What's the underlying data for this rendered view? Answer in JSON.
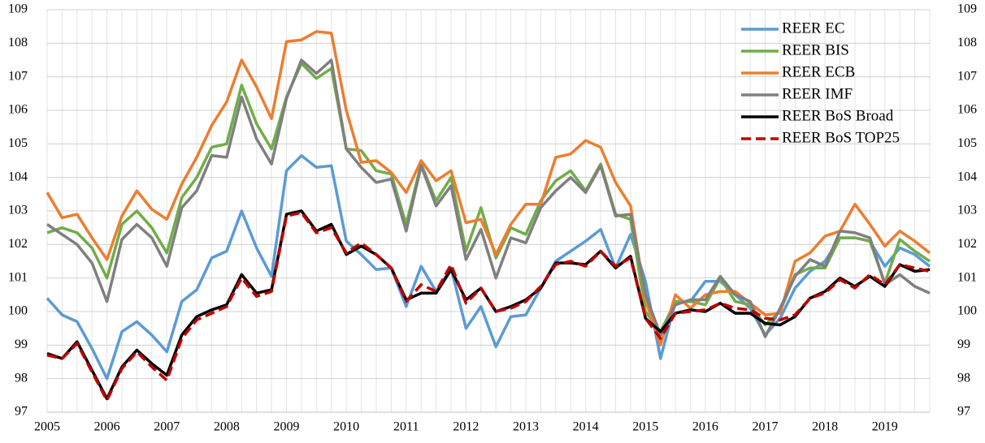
{
  "chart_data": {
    "type": "line",
    "categories": [
      "2005",
      null,
      null,
      null,
      "2006",
      null,
      null,
      null,
      "2007",
      null,
      null,
      null,
      "2008",
      null,
      null,
      null,
      "2009",
      null,
      null,
      null,
      "2010",
      null,
      null,
      null,
      "2011",
      null,
      null,
      null,
      "2012",
      null,
      null,
      null,
      "2013",
      null,
      null,
      null,
      "2014",
      null,
      null,
      null,
      "2015",
      null,
      null,
      null,
      "2016",
      null,
      null,
      null,
      "2017",
      null,
      null,
      null,
      "2018",
      null,
      null,
      null,
      "2019",
      null,
      null,
      null
    ],
    "ylim": [
      97,
      109
    ],
    "yticks": [
      97,
      98,
      99,
      100,
      101,
      102,
      103,
      104,
      105,
      106,
      107,
      108,
      109
    ],
    "y2lim": [
      97,
      109
    ],
    "y2ticks": [
      97,
      98,
      99,
      100,
      101,
      102,
      103,
      104,
      105,
      106,
      107,
      108,
      109
    ],
    "grid": true,
    "legend": "upper right",
    "series": [
      {
        "name": "REER EC",
        "color": "#5b9bd5",
        "dash": false,
        "values": [
          100.4,
          99.9,
          99.7,
          98.9,
          98.0,
          99.4,
          99.7,
          99.3,
          98.8,
          100.3,
          100.65,
          101.6,
          101.8,
          103.0,
          101.9,
          101.05,
          104.2,
          104.65,
          104.3,
          104.35,
          102.1,
          101.7,
          101.25,
          101.3,
          100.15,
          101.35,
          100.6,
          101.3,
          99.5,
          100.15,
          98.95,
          99.85,
          99.9,
          100.7,
          101.5,
          101.8,
          102.1,
          102.45,
          101.3,
          102.3,
          100.9,
          98.6,
          100.3,
          100.3,
          100.9,
          100.9,
          100.5,
          100.1,
          99.3,
          99.8,
          100.7,
          101.2,
          101.5,
          102.2,
          102.2,
          102.1,
          101.35,
          101.9,
          101.7,
          101.35
        ]
      },
      {
        "name": "REER BIS",
        "color": "#70ad47",
        "dash": false,
        "values": [
          102.35,
          102.5,
          102.35,
          101.9,
          101.0,
          102.6,
          103.0,
          102.5,
          101.75,
          103.4,
          104.0,
          104.9,
          105.0,
          106.75,
          105.6,
          104.85,
          106.4,
          107.4,
          106.95,
          107.25,
          104.85,
          104.8,
          104.2,
          104.1,
          102.6,
          104.4,
          103.3,
          104.0,
          101.8,
          103.1,
          101.6,
          102.5,
          102.3,
          103.3,
          103.9,
          104.2,
          103.6,
          104.4,
          102.9,
          102.75,
          100.0,
          99.4,
          100.3,
          100.3,
          100.2,
          101.0,
          100.3,
          100.2,
          99.6,
          100.0,
          101.1,
          101.3,
          101.3,
          102.2,
          102.2,
          102.1,
          100.85,
          102.15,
          101.8,
          101.5
        ]
      },
      {
        "name": "REER ECB",
        "color": "#ed7d31",
        "dash": false,
        "values": [
          103.55,
          102.8,
          102.9,
          102.2,
          101.55,
          102.85,
          103.6,
          103.05,
          102.75,
          103.8,
          104.6,
          105.55,
          106.25,
          107.5,
          106.7,
          105.75,
          108.05,
          108.1,
          108.35,
          108.3,
          106.0,
          104.45,
          104.5,
          104.15,
          103.55,
          104.5,
          103.9,
          104.2,
          102.65,
          102.75,
          101.7,
          102.6,
          103.2,
          103.2,
          104.6,
          104.7,
          105.1,
          104.9,
          103.85,
          103.15,
          100.35,
          99.0,
          100.5,
          100.1,
          100.5,
          100.6,
          100.6,
          100.25,
          99.9,
          99.95,
          101.5,
          101.75,
          102.25,
          102.4,
          103.2,
          102.6,
          101.95,
          102.4,
          102.1,
          101.75
        ]
      },
      {
        "name": "REER IMF",
        "color": "#7f7f7f",
        "dash": false,
        "values": [
          102.6,
          102.3,
          102.0,
          101.45,
          100.3,
          102.15,
          102.6,
          102.2,
          101.35,
          103.1,
          103.6,
          104.65,
          104.6,
          106.4,
          105.15,
          104.4,
          106.35,
          107.5,
          107.1,
          107.5,
          104.85,
          104.3,
          103.85,
          103.95,
          102.4,
          104.35,
          103.15,
          103.75,
          101.55,
          102.45,
          101.0,
          102.2,
          102.05,
          103.1,
          103.6,
          104.0,
          103.55,
          104.35,
          102.85,
          102.9,
          100.5,
          99.3,
          100.2,
          100.35,
          100.35,
          101.05,
          100.5,
          100.3,
          99.25,
          100.1,
          101.05,
          101.55,
          101.35,
          102.4,
          102.35,
          102.2,
          100.8,
          101.1,
          100.75,
          100.55
        ]
      },
      {
        "name": "REER BoS Broad",
        "color": "#000000",
        "dash": false,
        "values": [
          98.75,
          98.6,
          99.1,
          98.25,
          97.4,
          98.35,
          98.85,
          98.45,
          98.1,
          99.3,
          99.85,
          100.05,
          100.2,
          101.1,
          100.55,
          100.65,
          102.9,
          103.0,
          102.4,
          102.6,
          101.7,
          101.95,
          101.7,
          101.3,
          100.35,
          100.55,
          100.55,
          101.25,
          100.35,
          100.7,
          100.0,
          100.15,
          100.35,
          100.7,
          101.45,
          101.45,
          101.4,
          101.8,
          101.3,
          101.65,
          99.8,
          99.4,
          99.95,
          100.05,
          100.0,
          100.25,
          99.95,
          99.95,
          99.65,
          99.6,
          99.85,
          100.4,
          100.6,
          101.0,
          100.75,
          101.05,
          100.75,
          101.4,
          101.2,
          101.25
        ]
      },
      {
        "name": "REER BoS TOP25",
        "color": "#c00000",
        "dash": true,
        "values": [
          98.7,
          98.6,
          99.05,
          98.2,
          97.35,
          98.3,
          98.8,
          98.35,
          97.95,
          99.2,
          99.75,
          99.95,
          100.15,
          101.0,
          100.45,
          100.6,
          102.85,
          102.95,
          102.35,
          102.5,
          101.75,
          102.05,
          101.7,
          101.3,
          100.3,
          100.8,
          100.6,
          101.4,
          100.25,
          100.7,
          100.0,
          100.1,
          100.3,
          100.75,
          101.4,
          101.5,
          101.35,
          101.8,
          101.35,
          101.6,
          99.8,
          99.2,
          99.95,
          100.0,
          100.05,
          100.25,
          100.1,
          100.05,
          99.8,
          99.75,
          99.9,
          100.4,
          100.55,
          100.95,
          100.7,
          101.1,
          100.8,
          101.4,
          101.3,
          101.2
        ]
      }
    ]
  }
}
